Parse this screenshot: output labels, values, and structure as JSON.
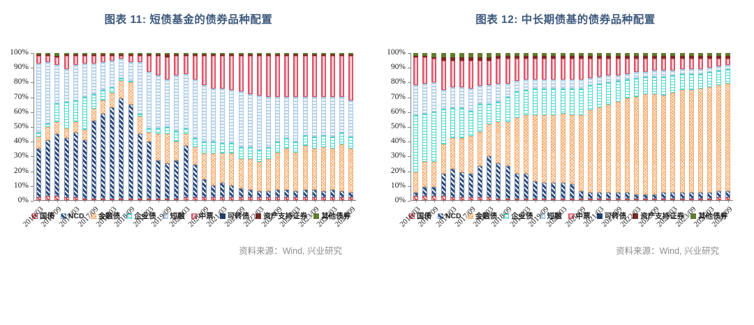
{
  "charts": [
    {
      "title": "图表 11: 短债基金的债券品种配置",
      "source": "资料来源：Wind, 兴业研究",
      "chart_data": {
        "type": "bar",
        "subtype": "stacked-100-percent",
        "title": "图表 11: 短债基金的债券品种配置",
        "xlabel": "",
        "ylabel": "",
        "ylim": [
          0,
          100
        ],
        "grid": false,
        "legend_position": "bottom",
        "yticks": [
          "100%",
          "90%",
          "80%",
          "70%",
          "60%",
          "50%",
          "40%",
          "30%",
          "20%",
          "10%",
          "0%"
        ],
        "categories": [
          "2016/03",
          "2016/06",
          "2016/09",
          "2016/12",
          "2017/03",
          "2017/06",
          "2017/09",
          "2017/12",
          "2018/03",
          "2018/06",
          "2018/09",
          "2018/12",
          "2019/03",
          "2019/06",
          "2019/09",
          "2019/12",
          "2020/03",
          "2020/06",
          "2020/09",
          "2020/12",
          "2021/03",
          "2021/06",
          "2021/09",
          "2021/12",
          "2022/03",
          "2022/06",
          "2022/09",
          "2022/12",
          "2023/03",
          "2023/06",
          "2023/09",
          "2023/12",
          "2024/03",
          "2024/06",
          "2024/09"
        ],
        "x_tick_labels": [
          "2016/03",
          "2016/09",
          "2017/03",
          "2017/09",
          "2018/03",
          "2018/09",
          "2019/03",
          "2019/09",
          "2020/03",
          "2020/09",
          "2021/03",
          "2021/09",
          "2022/03",
          "2022/09",
          "2023/03",
          "2023/09",
          "2024/03",
          "2024/09"
        ],
        "series": [
          {
            "name": "国债",
            "color": "#C94A52",
            "values": [
              2,
              3,
              3,
              2,
              2,
              1,
              1,
              1,
              1,
              1,
              1,
              1,
              1,
              1,
              1,
              1,
              2,
              2,
              2,
              2,
              2,
              2,
              2,
              2,
              2,
              2,
              2,
              2,
              2,
              2,
              2,
              2,
              2,
              2,
              2
            ]
          },
          {
            "name": "NCD",
            "color": "#2F4C7C",
            "values": [
              33,
              38,
              42,
              40,
              44,
              40,
              53,
              58,
              62,
              68,
              64,
              44,
              39,
              26,
              24,
              26,
              35,
              22,
              12,
              8,
              10,
              8,
              6,
              5,
              4,
              4,
              5,
              5,
              4,
              5,
              5,
              4,
              5,
              4,
              3
            ]
          },
          {
            "name": "金融债",
            "color": "#F2A96C",
            "values": [
              8,
              9,
              8,
              7,
              7,
              7,
              8,
              9,
              10,
              12,
              15,
              12,
              6,
              18,
              20,
              13,
              8,
              12,
              18,
              22,
              20,
              22,
              20,
              21,
              20,
              22,
              25,
              28,
              26,
              30,
              28,
              30,
              28,
              32,
              30
            ]
          },
          {
            "name": "企业债",
            "color": "#4BD6CC",
            "values": [
              3,
              2,
              13,
              18,
              15,
              22,
              10,
              7,
              4,
              2,
              1,
              2,
              3,
              4,
              5,
              7,
              4,
              6,
              8,
              8,
              7,
              7,
              8,
              8,
              8,
              8,
              8,
              7,
              8,
              7,
              8,
              8,
              8,
              8,
              8
            ]
          },
          {
            "name": "短融",
            "color": "#A9C9E8",
            "values": [
              47,
              42,
              26,
              22,
              24,
              23,
              21,
              19,
              18,
              13,
              13,
              35,
              38,
              36,
              32,
              38,
              37,
              40,
              38,
              36,
              37,
              36,
              38,
              36,
              37,
              34,
              30,
              28,
              30,
              26,
              27,
              26,
              27,
              24,
              25
            ]
          },
          {
            "name": "中票",
            "color": "#E05C74",
            "values": [
              5,
              4,
              5,
              9,
              6,
              5,
              5,
              4,
              3,
              2,
              4,
              4,
              11,
              13,
              15,
              13,
              12,
              16,
              20,
              22,
              22,
              23,
              24,
              26,
              27,
              28,
              28,
              28,
              28,
              28,
              28,
              28,
              28,
              28,
              30
            ]
          },
          {
            "name": "可转债",
            "color": "#1F3F6E",
            "values": [
              0,
              0,
              0,
              0,
              0,
              0,
              0,
              0,
              0,
              0,
              0,
              0,
              0,
              0,
              0,
              0,
              0,
              0,
              0,
              0,
              0,
              0,
              0,
              0,
              0,
              0,
              0,
              0,
              0,
              0,
              0,
              0,
              0,
              0,
              0
            ]
          },
          {
            "name": "资产支持证券",
            "color": "#7D2B25",
            "values": [
              1,
              1,
              1,
              1,
              1,
              1,
              1,
              1,
              1,
              1,
              1,
              1,
              1,
              1,
              2,
              1,
              1,
              1,
              1,
              1,
              1,
              1,
              1,
              1,
              1,
              1,
              1,
              1,
              1,
              1,
              1,
              1,
              1,
              1,
              1
            ]
          },
          {
            "name": "其他债券",
            "color": "#5F7E2C",
            "values": [
              1,
              1,
              2,
              1,
              1,
              1,
              1,
              1,
              1,
              1,
              1,
              1,
              1,
              1,
              1,
              1,
              1,
              1,
              1,
              1,
              1,
              1,
              1,
              1,
              1,
              1,
              1,
              1,
              1,
              1,
              1,
              1,
              1,
              1,
              1
            ]
          }
        ]
      }
    },
    {
      "title": "图表 12: 中长期债基的债券品种配置",
      "source": "资料来源：Wind, 兴业研究",
      "chart_data": {
        "type": "bar",
        "subtype": "stacked-100-percent",
        "title": "图表 12: 中长期债基的债券品种配置",
        "xlabel": "",
        "ylabel": "",
        "ylim": [
          0,
          100
        ],
        "grid": false,
        "legend_position": "bottom",
        "yticks": [
          "100%",
          "90%",
          "80%",
          "70%",
          "60%",
          "50%",
          "40%",
          "30%",
          "20%",
          "10%",
          "0%"
        ],
        "categories": [
          "2016/03",
          "2016/06",
          "2016/09",
          "2016/12",
          "2017/03",
          "2017/06",
          "2017/09",
          "2017/12",
          "2018/03",
          "2018/06",
          "2018/09",
          "2018/12",
          "2019/03",
          "2019/06",
          "2019/09",
          "2019/12",
          "2020/03",
          "2020/06",
          "2020/09",
          "2020/12",
          "2021/03",
          "2021/06",
          "2021/09",
          "2021/12",
          "2022/03",
          "2022/06",
          "2022/09",
          "2022/12",
          "2023/03",
          "2023/06",
          "2023/09",
          "2023/12",
          "2024/03",
          "2024/06",
          "2024/09"
        ],
        "x_tick_labels": [
          "2016/03",
          "2016/09",
          "2017/03",
          "2017/09",
          "2018/03",
          "2018/09",
          "2019/03",
          "2019/09",
          "2020/03",
          "2020/09",
          "2021/03",
          "2021/09",
          "2022/03",
          "2022/09",
          "2023/03",
          "2023/09",
          "2024/03",
          "2024/09"
        ],
        "series": [
          {
            "name": "国债",
            "color": "#C94A52",
            "values": [
              3,
              3,
              3,
              3,
              2,
              2,
              2,
              2,
              2,
              1,
              1,
              1,
              1,
              1,
              1,
              1,
              1,
              1,
              1,
              1,
              1,
              1,
              1,
              1,
              1,
              1,
              1,
              1,
              1,
              1,
              1,
              1,
              1,
              2,
              2
            ]
          },
          {
            "name": "NCD",
            "color": "#2F4C7C",
            "values": [
              2,
              6,
              6,
              15,
              19,
              17,
              16,
              21,
              28,
              24,
              22,
              17,
              17,
              12,
              11,
              11,
              11,
              10,
              5,
              4,
              4,
              4,
              4,
              4,
              3,
              3,
              3,
              4,
              4,
              4,
              4,
              4,
              4,
              4,
              4
            ]
          },
          {
            "name": "金融债",
            "color": "#F2A96C",
            "values": [
              14,
              17,
              17,
              20,
              21,
              23,
              25,
              23,
              22,
              28,
              30,
              38,
              40,
              45,
              46,
              46,
              47,
              47,
              52,
              56,
              58,
              60,
              62,
              64,
              66,
              68,
              68,
              66,
              68,
              70,
              70,
              71,
              72,
              72,
              73
            ]
          },
          {
            "name": "企业债",
            "color": "#4BD6CC",
            "values": [
              39,
              33,
              34,
              24,
              20,
              20,
              17,
              19,
              14,
              14,
              17,
              18,
              17,
              18,
              18,
              18,
              17,
              18,
              18,
              17,
              16,
              15,
              14,
              13,
              13,
              12,
              12,
              13,
              12,
              11,
              11,
              10,
              10,
              10,
              10
            ]
          },
          {
            "name": "短融",
            "color": "#A9C9E8",
            "values": [
              20,
              20,
              20,
              13,
              14,
              14,
              15,
              12,
              13,
              12,
              9,
              7,
              7,
              6,
              6,
              6,
              6,
              6,
              6,
              5,
              5,
              5,
              4,
              4,
              4,
              3,
              4,
              4,
              3,
              3,
              3,
              3,
              3,
              3,
              3
            ]
          },
          {
            "name": "中票",
            "color": "#E05C74",
            "values": [
              19,
              18,
              16,
              20,
              18,
              18,
              19,
              17,
              17,
              17,
              17,
              15,
              14,
              14,
              14,
              14,
              14,
              14,
              14,
              13,
              12,
              11,
              11,
              10,
              9,
              9,
              8,
              8,
              8,
              7,
              7,
              7,
              6,
              5,
              4
            ]
          },
          {
            "name": "可转债",
            "color": "#1F3F6E",
            "values": [
              0,
              0,
              0,
              0,
              0,
              0,
              0,
              0,
              0,
              0,
              0,
              0,
              0,
              0,
              0,
              0,
              0,
              0,
              0,
              0,
              0,
              0,
              0,
              0,
              0,
              0,
              0,
              0,
              0,
              0,
              0,
              0,
              0,
              0,
              0
            ]
          },
          {
            "name": "资产支持证券",
            "color": "#7D2B25",
            "values": [
              1,
              1,
              1,
              2,
              2,
              2,
              2,
              2,
              2,
              2,
              2,
              2,
              2,
              2,
              2,
              2,
              2,
              2,
              2,
              2,
              2,
              2,
              2,
              2,
              2,
              2,
              2,
              2,
              2,
              2,
              2,
              2,
              2,
              2,
              2
            ]
          },
          {
            "name": "其他债券",
            "color": "#5F7E2C",
            "values": [
              2,
              2,
              3,
              3,
              3,
              3,
              3,
              3,
              3,
              2,
              2,
              2,
              2,
              2,
              2,
              2,
              2,
              2,
              2,
              2,
              2,
              2,
              2,
              2,
              2,
              2,
              2,
              2,
              2,
              2,
              2,
              2,
              2,
              2,
              2
            ]
          }
        ]
      }
    }
  ]
}
